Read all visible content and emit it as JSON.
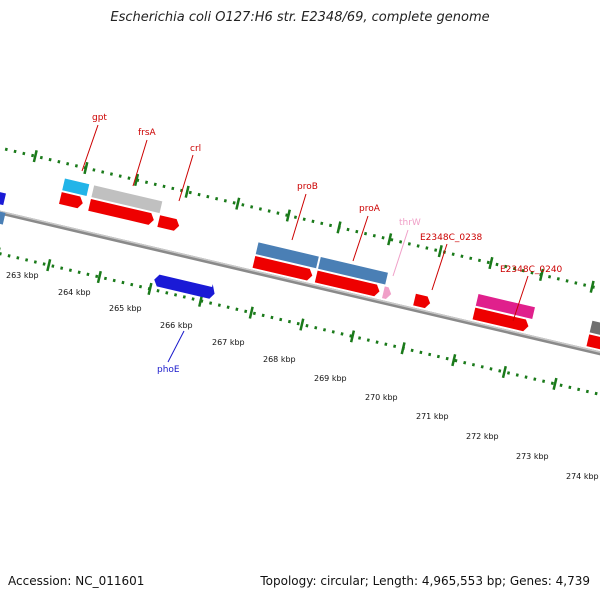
{
  "title": "Escherichia coli O127:H6 str. E2348/69, complete genome",
  "accession": "Accession: NC_011601",
  "topology": "Topology: circular; Length: 4,965,553 bp; Genes: 4,739",
  "colors": {
    "backbone": "#8a8a8a",
    "tick": "#1a7a1a",
    "cds": "#ee0000",
    "gene_blue": "#4a7fb5",
    "gene_dark_blue": "#1a1ad6",
    "gene_cyan": "#22b4e8",
    "gene_gray": "#c0c0c0",
    "gene_magenta": "#e0208c",
    "gene_pink": "#f0a0c8",
    "gene_dark_gray": "#707070"
  },
  "ticks": [
    {
      "label": "263 kbp"
    },
    {
      "label": "264 kbp"
    },
    {
      "label": "265 kbp"
    },
    {
      "label": "266 kbp"
    },
    {
      "label": "267 kbp"
    },
    {
      "label": "268 kbp"
    },
    {
      "label": "269 kbp"
    },
    {
      "label": "270 kbp"
    },
    {
      "label": "271 kbp"
    },
    {
      "label": "272 kbp"
    },
    {
      "label": "273 kbp"
    },
    {
      "label": "274 kbp"
    }
  ],
  "gene_labels": [
    {
      "name": "gpt",
      "color": "#cc0000"
    },
    {
      "name": "frsA",
      "color": "#cc0000"
    },
    {
      "name": "crl",
      "color": "#cc0000"
    },
    {
      "name": "proB",
      "color": "#cc0000"
    },
    {
      "name": "proA",
      "color": "#cc0000"
    },
    {
      "name": "thrW",
      "color": "#f0a0c8"
    },
    {
      "name": "E2348C_0238",
      "color": "#cc0000"
    },
    {
      "name": "E2348C_0240",
      "color": "#cc0000"
    },
    {
      "name": "phoE",
      "color": "#1a1acc"
    }
  ]
}
